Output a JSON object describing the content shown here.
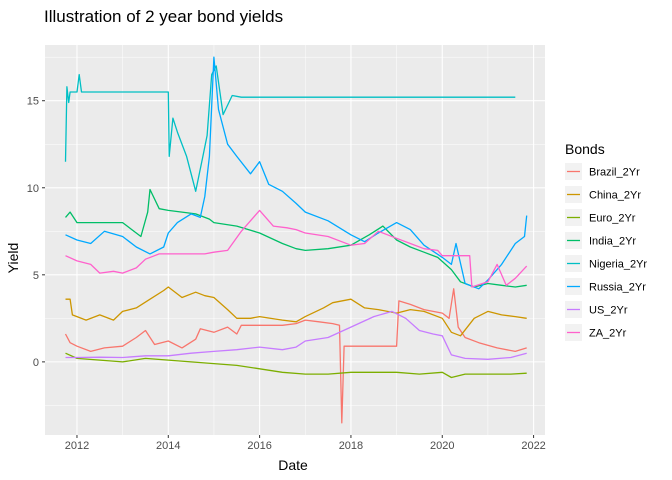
{
  "chart_data": {
    "type": "line",
    "title": "Illustration of 2 year bond yields",
    "xlabel": "Date",
    "ylabel": "Yield",
    "xlim": [
      2011.3,
      2022.25
    ],
    "ylim": [
      -4.2,
      18.2
    ],
    "x_ticks": [
      2012,
      2014,
      2016,
      2018,
      2020,
      2022
    ],
    "x_tick_labels": [
      "2012",
      "2014",
      "2016",
      "2018",
      "2020",
      "2022"
    ],
    "y_ticks": [
      0,
      5,
      10,
      15
    ],
    "y_tick_labels": [
      "0",
      "5",
      "10",
      "15"
    ],
    "grid": true,
    "background": "#ebebeb",
    "legend": {
      "title": "Bonds",
      "position": "right"
    },
    "series": [
      {
        "name": "Brazil_2Yr",
        "color": "#F8766D",
        "points": [
          [
            2011.75,
            1.6
          ],
          [
            2011.85,
            1.1
          ],
          [
            2012.0,
            0.9
          ],
          [
            2012.3,
            0.6
          ],
          [
            2012.6,
            0.8
          ],
          [
            2013.0,
            0.9
          ],
          [
            2013.3,
            1.4
          ],
          [
            2013.5,
            1.8
          ],
          [
            2013.7,
            1.0
          ],
          [
            2014.0,
            1.2
          ],
          [
            2014.3,
            0.8
          ],
          [
            2014.6,
            1.3
          ],
          [
            2014.7,
            1.9
          ],
          [
            2015.0,
            1.7
          ],
          [
            2015.3,
            2.0
          ],
          [
            2015.5,
            1.6
          ],
          [
            2015.6,
            2.1
          ],
          [
            2016.0,
            2.1
          ],
          [
            2016.5,
            2.1
          ],
          [
            2016.8,
            2.2
          ],
          [
            2017.0,
            2.4
          ],
          [
            2017.3,
            2.3
          ],
          [
            2017.6,
            2.2
          ],
          [
            2017.75,
            2.1
          ],
          [
            2017.8,
            -3.5
          ],
          [
            2017.85,
            0.9
          ],
          [
            2018.2,
            0.9
          ],
          [
            2018.6,
            0.9
          ],
          [
            2019.0,
            0.9
          ],
          [
            2019.05,
            3.5
          ],
          [
            2019.3,
            3.3
          ],
          [
            2019.6,
            3.0
          ],
          [
            2020.0,
            2.8
          ],
          [
            2020.15,
            2.5
          ],
          [
            2020.25,
            4.2
          ],
          [
            2020.35,
            2.0
          ],
          [
            2020.5,
            1.4
          ],
          [
            2020.8,
            1.1
          ],
          [
            2021.2,
            0.8
          ],
          [
            2021.6,
            0.6
          ],
          [
            2021.85,
            0.8
          ]
        ]
      },
      {
        "name": "China_2Yr",
        "color": "#CD9600",
        "points": [
          [
            2011.75,
            3.6
          ],
          [
            2011.85,
            3.6
          ],
          [
            2011.9,
            2.7
          ],
          [
            2012.2,
            2.4
          ],
          [
            2012.5,
            2.7
          ],
          [
            2012.8,
            2.4
          ],
          [
            2013.0,
            2.9
          ],
          [
            2013.3,
            3.1
          ],
          [
            2013.6,
            3.6
          ],
          [
            2013.9,
            4.1
          ],
          [
            2014.0,
            4.3
          ],
          [
            2014.3,
            3.7
          ],
          [
            2014.6,
            4.0
          ],
          [
            2014.8,
            3.8
          ],
          [
            2015.0,
            3.7
          ],
          [
            2015.3,
            3.0
          ],
          [
            2015.5,
            2.5
          ],
          [
            2015.8,
            2.5
          ],
          [
            2016.0,
            2.6
          ],
          [
            2016.5,
            2.4
          ],
          [
            2016.8,
            2.3
          ],
          [
            2017.0,
            2.6
          ],
          [
            2017.4,
            3.1
          ],
          [
            2017.6,
            3.4
          ],
          [
            2018.0,
            3.6
          ],
          [
            2018.3,
            3.1
          ],
          [
            2018.6,
            3.0
          ],
          [
            2019.0,
            2.8
          ],
          [
            2019.3,
            3.0
          ],
          [
            2019.6,
            2.9
          ],
          [
            2020.0,
            2.5
          ],
          [
            2020.2,
            1.7
          ],
          [
            2020.4,
            1.5
          ],
          [
            2020.7,
            2.5
          ],
          [
            2021.0,
            2.9
          ],
          [
            2021.3,
            2.7
          ],
          [
            2021.6,
            2.6
          ],
          [
            2021.85,
            2.5
          ]
        ]
      },
      {
        "name": "Euro_2Yr",
        "color": "#7CAE00",
        "points": [
          [
            2011.75,
            0.5
          ],
          [
            2012.0,
            0.2
          ],
          [
            2012.5,
            0.1
          ],
          [
            2013.0,
            0.0
          ],
          [
            2013.5,
            0.2
          ],
          [
            2014.0,
            0.1
          ],
          [
            2014.5,
            0.0
          ],
          [
            2015.0,
            -0.1
          ],
          [
            2015.5,
            -0.2
          ],
          [
            2016.0,
            -0.4
          ],
          [
            2016.5,
            -0.6
          ],
          [
            2017.0,
            -0.7
          ],
          [
            2017.5,
            -0.7
          ],
          [
            2018.0,
            -0.6
          ],
          [
            2018.5,
            -0.6
          ],
          [
            2019.0,
            -0.6
          ],
          [
            2019.5,
            -0.7
          ],
          [
            2020.0,
            -0.6
          ],
          [
            2020.2,
            -0.9
          ],
          [
            2020.5,
            -0.7
          ],
          [
            2021.0,
            -0.7
          ],
          [
            2021.5,
            -0.7
          ],
          [
            2021.85,
            -0.65
          ]
        ]
      },
      {
        "name": "India_2Yr",
        "color": "#00BE67",
        "points": [
          [
            2011.75,
            8.3
          ],
          [
            2011.85,
            8.6
          ],
          [
            2012.0,
            8.0
          ],
          [
            2012.5,
            8.0
          ],
          [
            2013.0,
            8.0
          ],
          [
            2013.2,
            7.6
          ],
          [
            2013.4,
            7.2
          ],
          [
            2013.55,
            8.6
          ],
          [
            2013.6,
            9.9
          ],
          [
            2013.8,
            8.8
          ],
          [
            2014.0,
            8.7
          ],
          [
            2014.3,
            8.6
          ],
          [
            2014.6,
            8.5
          ],
          [
            2014.9,
            8.2
          ],
          [
            2015.0,
            8.0
          ],
          [
            2015.5,
            7.8
          ],
          [
            2016.0,
            7.4
          ],
          [
            2016.5,
            6.8
          ],
          [
            2016.8,
            6.5
          ],
          [
            2017.0,
            6.4
          ],
          [
            2017.5,
            6.5
          ],
          [
            2018.0,
            6.7
          ],
          [
            2018.4,
            7.3
          ],
          [
            2018.7,
            7.8
          ],
          [
            2019.0,
            7.0
          ],
          [
            2019.3,
            6.6
          ],
          [
            2019.6,
            6.3
          ],
          [
            2019.9,
            6.0
          ],
          [
            2020.2,
            5.3
          ],
          [
            2020.4,
            4.6
          ],
          [
            2020.7,
            4.3
          ],
          [
            2021.0,
            4.5
          ],
          [
            2021.3,
            4.4
          ],
          [
            2021.6,
            4.3
          ],
          [
            2021.85,
            4.4
          ]
        ]
      },
      {
        "name": "Nigeria_2Yr",
        "color": "#00BFC4",
        "points": [
          [
            2011.75,
            11.5
          ],
          [
            2011.78,
            15.8
          ],
          [
            2011.82,
            14.9
          ],
          [
            2011.85,
            15.5
          ],
          [
            2012.0,
            15.5
          ],
          [
            2012.05,
            16.5
          ],
          [
            2012.1,
            15.5
          ],
          [
            2012.5,
            15.5
          ],
          [
            2013.0,
            15.5
          ],
          [
            2013.5,
            15.5
          ],
          [
            2014.0,
            15.5
          ],
          [
            2014.02,
            11.8
          ],
          [
            2014.1,
            14.0
          ],
          [
            2014.2,
            13.2
          ],
          [
            2014.4,
            11.8
          ],
          [
            2014.6,
            9.8
          ],
          [
            2014.75,
            11.7
          ],
          [
            2014.85,
            13.0
          ],
          [
            2014.95,
            16.5
          ],
          [
            2015.05,
            17.0
          ],
          [
            2015.2,
            14.2
          ],
          [
            2015.4,
            15.3
          ],
          [
            2015.6,
            15.2
          ],
          [
            2016.0,
            15.2
          ],
          [
            2017.0,
            15.2
          ],
          [
            2018.0,
            15.2
          ],
          [
            2019.0,
            15.2
          ],
          [
            2020.0,
            15.2
          ],
          [
            2021.0,
            15.2
          ],
          [
            2021.6,
            15.2
          ]
        ]
      },
      {
        "name": "Russia_2Yr",
        "color": "#00A9FF",
        "points": [
          [
            2011.75,
            7.3
          ],
          [
            2012.0,
            7.0
          ],
          [
            2012.3,
            6.8
          ],
          [
            2012.6,
            7.5
          ],
          [
            2013.0,
            7.2
          ],
          [
            2013.3,
            6.6
          ],
          [
            2013.6,
            6.2
          ],
          [
            2013.9,
            6.6
          ],
          [
            2014.0,
            7.4
          ],
          [
            2014.2,
            8.0
          ],
          [
            2014.5,
            8.5
          ],
          [
            2014.7,
            8.3
          ],
          [
            2014.8,
            9.5
          ],
          [
            2014.9,
            11.8
          ],
          [
            2015.0,
            17.5
          ],
          [
            2015.1,
            14.5
          ],
          [
            2015.3,
            12.5
          ],
          [
            2015.5,
            11.8
          ],
          [
            2015.8,
            10.8
          ],
          [
            2016.0,
            11.5
          ],
          [
            2016.2,
            10.2
          ],
          [
            2016.5,
            9.8
          ],
          [
            2016.8,
            9.1
          ],
          [
            2017.0,
            8.6
          ],
          [
            2017.5,
            8.1
          ],
          [
            2018.0,
            7.3
          ],
          [
            2018.3,
            6.9
          ],
          [
            2018.6,
            7.4
          ],
          [
            2019.0,
            8.0
          ],
          [
            2019.3,
            7.6
          ],
          [
            2019.6,
            6.7
          ],
          [
            2020.0,
            6.0
          ],
          [
            2020.2,
            5.6
          ],
          [
            2020.3,
            6.8
          ],
          [
            2020.5,
            4.5
          ],
          [
            2020.8,
            4.2
          ],
          [
            2021.0,
            4.7
          ],
          [
            2021.3,
            5.6
          ],
          [
            2021.6,
            6.8
          ],
          [
            2021.8,
            7.2
          ],
          [
            2021.85,
            8.4
          ]
        ]
      },
      {
        "name": "US_2Yr",
        "color": "#C77CFF",
        "points": [
          [
            2011.75,
            0.25
          ],
          [
            2012.0,
            0.25
          ],
          [
            2012.5,
            0.27
          ],
          [
            2013.0,
            0.25
          ],
          [
            2013.5,
            0.35
          ],
          [
            2014.0,
            0.35
          ],
          [
            2014.5,
            0.5
          ],
          [
            2015.0,
            0.6
          ],
          [
            2015.5,
            0.7
          ],
          [
            2016.0,
            0.85
          ],
          [
            2016.5,
            0.7
          ],
          [
            2016.8,
            0.85
          ],
          [
            2017.0,
            1.2
          ],
          [
            2017.5,
            1.4
          ],
          [
            2018.0,
            2.0
          ],
          [
            2018.5,
            2.6
          ],
          [
            2018.9,
            2.9
          ],
          [
            2019.2,
            2.5
          ],
          [
            2019.5,
            1.8
          ],
          [
            2019.8,
            1.6
          ],
          [
            2020.0,
            1.5
          ],
          [
            2020.2,
            0.4
          ],
          [
            2020.5,
            0.2
          ],
          [
            2021.0,
            0.15
          ],
          [
            2021.5,
            0.25
          ],
          [
            2021.85,
            0.5
          ]
        ]
      },
      {
        "name": "ZA_2Yr",
        "color": "#FF61CC",
        "points": [
          [
            2011.75,
            6.1
          ],
          [
            2012.0,
            5.8
          ],
          [
            2012.3,
            5.6
          ],
          [
            2012.5,
            5.1
          ],
          [
            2012.8,
            5.2
          ],
          [
            2013.0,
            5.1
          ],
          [
            2013.3,
            5.4
          ],
          [
            2013.5,
            5.9
          ],
          [
            2013.8,
            6.2
          ],
          [
            2014.0,
            6.2
          ],
          [
            2014.5,
            6.2
          ],
          [
            2014.8,
            6.2
          ],
          [
            2015.0,
            6.3
          ],
          [
            2015.3,
            6.4
          ],
          [
            2015.6,
            7.5
          ],
          [
            2016.0,
            8.7
          ],
          [
            2016.3,
            7.8
          ],
          [
            2016.6,
            7.7
          ],
          [
            2016.8,
            7.6
          ],
          [
            2017.0,
            7.4
          ],
          [
            2017.5,
            7.2
          ],
          [
            2018.0,
            6.7
          ],
          [
            2018.3,
            6.8
          ],
          [
            2018.6,
            7.5
          ],
          [
            2019.0,
            7.1
          ],
          [
            2019.3,
            6.8
          ],
          [
            2019.6,
            6.5
          ],
          [
            2019.9,
            6.4
          ],
          [
            2020.0,
            6.1
          ],
          [
            2020.3,
            6.1
          ],
          [
            2020.6,
            6.1
          ],
          [
            2020.65,
            4.3
          ],
          [
            2021.0,
            4.6
          ],
          [
            2021.2,
            5.6
          ],
          [
            2021.4,
            4.4
          ],
          [
            2021.6,
            4.8
          ],
          [
            2021.85,
            5.5
          ]
        ]
      }
    ]
  }
}
